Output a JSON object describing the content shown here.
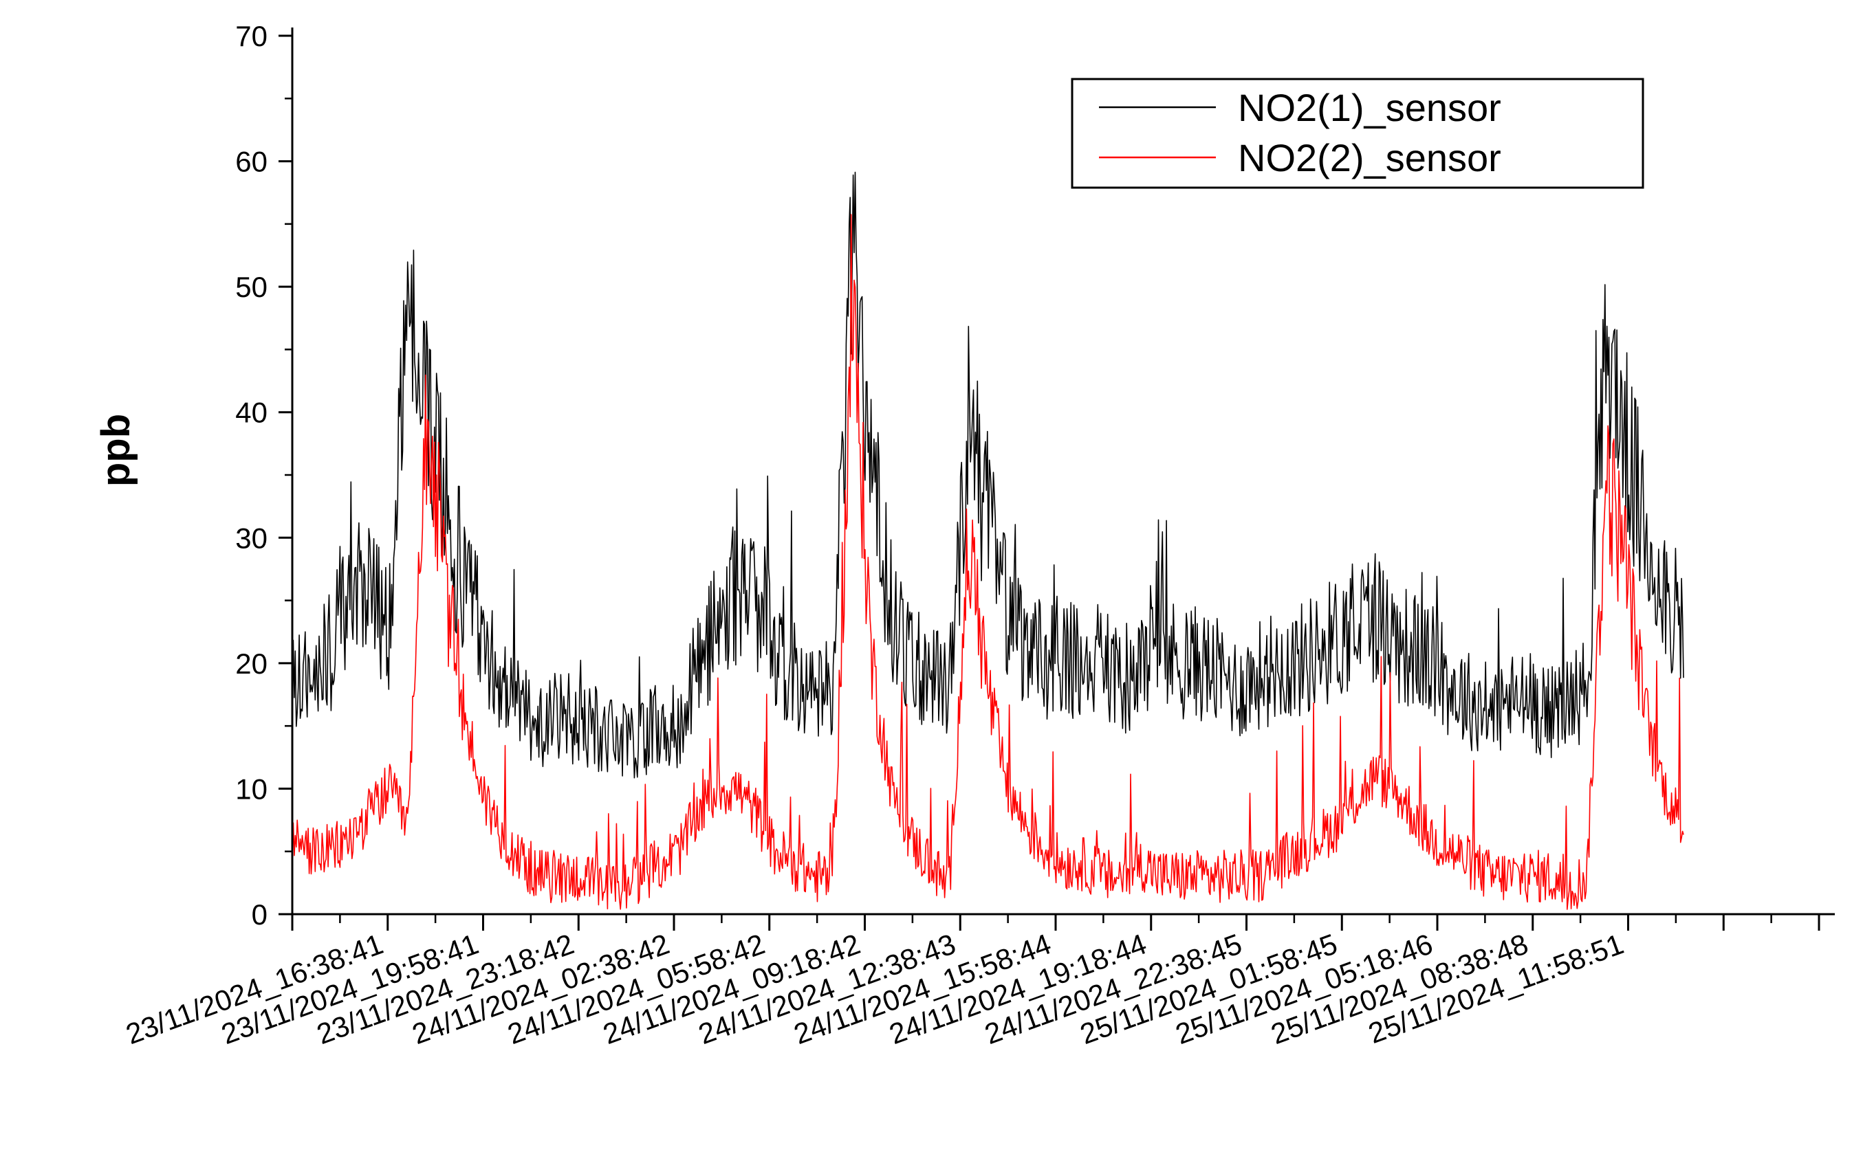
{
  "chart_data": {
    "type": "line",
    "title": "",
    "xlabel": "",
    "ylabel": "ppb",
    "ylim": [
      0,
      70
    ],
    "yticks": [
      0,
      10,
      20,
      30,
      40,
      50,
      60,
      70
    ],
    "xticks": [
      "23/11/2024_16:38:41",
      "23/11/2024_19:58:41",
      "23/11/2024_23:18:42",
      "24/11/2024_02:38:42",
      "24/11/2024_05:58:42",
      "24/11/2024_09:18:42",
      "24/11/2024_12:38:43",
      "24/11/2024_15:58:44",
      "24/11/2024_19:18:44",
      "24/11/2024_22:38:45",
      "25/11/2024_01:58:45",
      "25/11/2024_05:18:46",
      "25/11/2024_08:38:48",
      "25/11/2024_11:58:51"
    ],
    "legend_position": "top-right",
    "series": [
      {
        "name": "NO2(1)_sensor",
        "color": "#000000",
        "values": [
          18,
          19,
          21,
          27,
          26,
          22,
          50,
          40,
          32,
          26,
          22,
          18,
          16,
          15,
          16,
          15,
          14,
          14,
          14,
          15,
          15,
          20,
          23,
          26,
          24,
          21,
          19,
          17,
          18,
          55,
          35,
          24,
          20,
          19,
          18,
          40,
          31,
          24,
          21,
          20,
          21,
          19,
          20,
          18,
          20,
          21,
          20,
          20,
          19,
          18,
          19,
          20,
          20,
          21,
          22,
          23,
          24,
          22,
          21,
          20,
          18,
          17,
          16,
          17,
          17,
          16,
          17,
          18,
          45,
          38,
          30,
          26,
          22
        ]
      },
      {
        "name": "NO2(2)_sensor",
        "color": "#ff0000",
        "values": [
          6,
          5,
          5,
          6,
          8,
          10,
          7,
          40,
          25,
          15,
          9,
          6,
          4,
          3,
          3,
          3,
          2,
          2,
          3,
          4,
          5,
          8,
          10,
          10,
          8,
          5,
          4,
          3,
          3,
          48,
          20,
          10,
          6,
          4,
          2,
          30,
          18,
          10,
          7,
          5,
          4,
          4,
          3,
          3,
          4,
          3,
          3,
          3,
          3,
          3,
          3,
          4,
          5,
          6,
          7,
          9,
          11,
          10,
          8,
          6,
          5,
          4,
          3,
          3,
          3,
          3,
          2,
          3,
          35,
          28,
          16,
          10,
          7
        ]
      }
    ]
  }
}
